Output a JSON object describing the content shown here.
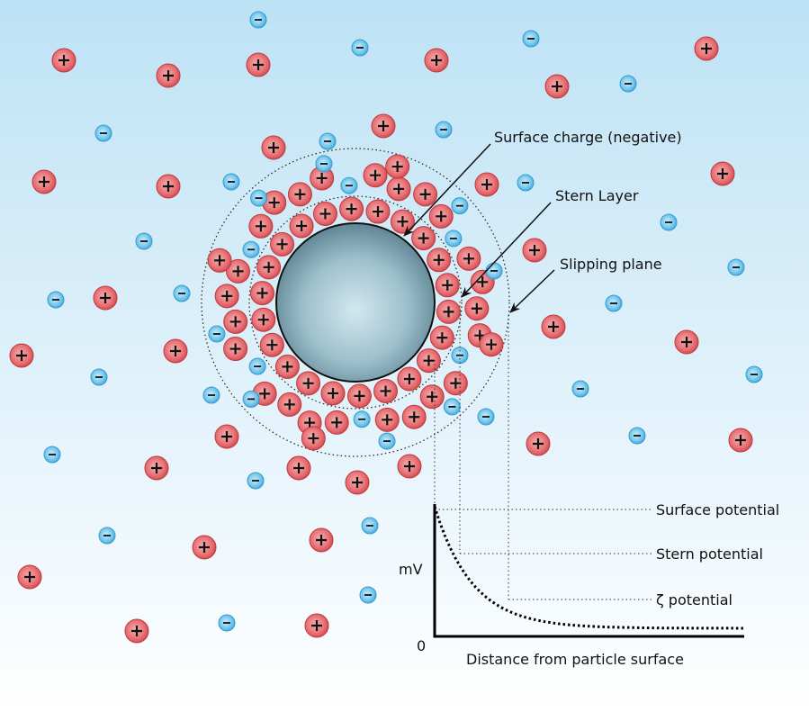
{
  "labels": {
    "surface_charge": "Surface charge (negative)",
    "stern_layer": "Stern Layer",
    "slipping_plane": "Slipping plane"
  },
  "graph": {
    "y_axis_label": "mV",
    "origin_label": "0",
    "x_axis_label": "Distance from particle surface",
    "surface_potential": "Surface potential",
    "stern_potential": "Stern potential",
    "zeta_potential": "ζ potential"
  },
  "ions": {
    "positive_symbol": "+",
    "negative_symbol": "−"
  },
  "colors": {
    "positive_ion": "#e05a5f",
    "negative_ion": "#5bb8e6",
    "particle": "#8fb3c2",
    "background_top": "#bde2f5",
    "background_bottom": "#ffffff"
  }
}
